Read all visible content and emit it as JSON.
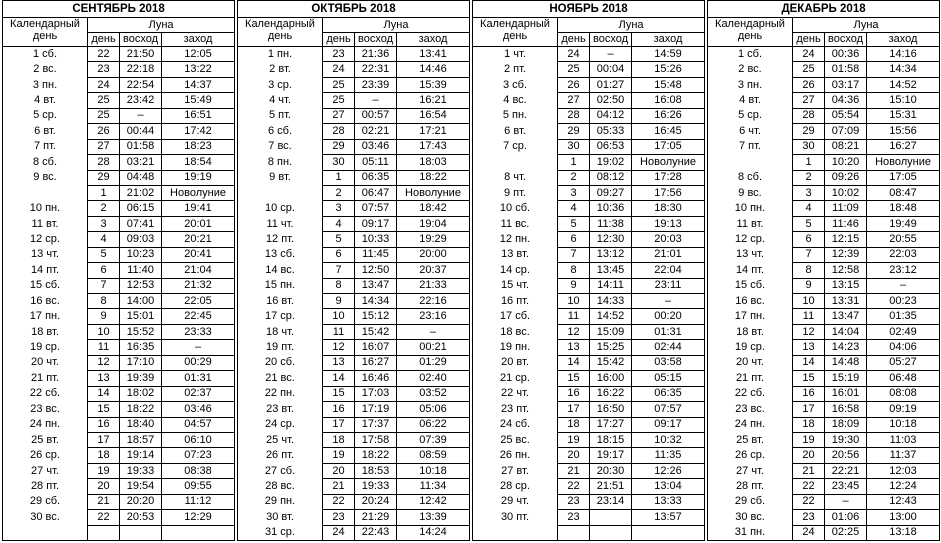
{
  "headers": {
    "calendar_day": "Календарный день",
    "moon": "Луна",
    "moon_day": "день",
    "rise": "восход",
    "set": "заход"
  },
  "months": [
    {
      "title": "СЕНТЯБРЬ 2018",
      "rows": [
        [
          "1 сб.",
          "22",
          "21:50",
          "12:05"
        ],
        [
          "2 вс.",
          "23",
          "22:18",
          "13:22"
        ],
        [
          "3 пн.",
          "24",
          "22:54",
          "14:37"
        ],
        [
          "4 вт.",
          "25",
          "23:42",
          "15:49"
        ],
        [
          "5 ср.",
          "25",
          "–",
          "16:51"
        ],
        [
          "6 вт.",
          "26",
          "00:44",
          "17:42"
        ],
        [
          "7 пт.",
          "27",
          "01:58",
          "18:23"
        ],
        [
          "8 сб.",
          "28",
          "03:21",
          "18:54"
        ],
        [
          "9 вс.",
          "29",
          "04:48",
          "19:19"
        ],
        [
          "",
          "1",
          "21:02",
          "Новолуние"
        ],
        [
          "10 пн.",
          "2",
          "06:15",
          "19:41"
        ],
        [
          "11 вт.",
          "3",
          "07:41",
          "20:01"
        ],
        [
          "12 ср.",
          "4",
          "09:03",
          "20:21"
        ],
        [
          "13 чт.",
          "5",
          "10:23",
          "20:41"
        ],
        [
          "14 пт.",
          "6",
          "11:40",
          "21:04"
        ],
        [
          "15 сб.",
          "7",
          "12:53",
          "21:32"
        ],
        [
          "16 вс.",
          "8",
          "14:00",
          "22:05"
        ],
        [
          "17 пн.",
          "9",
          "15:01",
          "22:45"
        ],
        [
          "18 вт.",
          "10",
          "15:52",
          "23:33"
        ],
        [
          "19 ср.",
          "11",
          "16:35",
          "–"
        ],
        [
          "20 чт.",
          "12",
          "17:10",
          "00:29"
        ],
        [
          "21 пт.",
          "13",
          "19:39",
          "01:31"
        ],
        [
          "22 сб.",
          "14",
          "18:02",
          "02:37"
        ],
        [
          "23 вс.",
          "15",
          "18:22",
          "03:46"
        ],
        [
          "24 пн.",
          "16",
          "18:40",
          "04:57"
        ],
        [
          "25 вт.",
          "17",
          "18:57",
          "06:10"
        ],
        [
          "26 ср.",
          "18",
          "19:14",
          "07:23"
        ],
        [
          "27 чт.",
          "19",
          "19:33",
          "08:38"
        ],
        [
          "28 пт.",
          "20",
          "19:54",
          "09:55"
        ],
        [
          "29 сб.",
          "21",
          "20:20",
          "11:12"
        ],
        [
          "30 вс.",
          "22",
          "20:53",
          "12:29"
        ],
        [
          "",
          "",
          "",
          ""
        ]
      ]
    },
    {
      "title": "ОКТЯБРЬ 2018",
      "rows": [
        [
          "1 пн.",
          "23",
          "21:36",
          "13:41"
        ],
        [
          "2 вт.",
          "24",
          "22:31",
          "14:46"
        ],
        [
          "3 ср.",
          "25",
          "23:39",
          "15:39"
        ],
        [
          "4 чт.",
          "25",
          "–",
          "16:21"
        ],
        [
          "5 пт.",
          "27",
          "00:57",
          "16:54"
        ],
        [
          "6 сб.",
          "28",
          "02:21",
          "17:21"
        ],
        [
          "7 вс.",
          "29",
          "03:46",
          "17:43"
        ],
        [
          "8 пн.",
          "30",
          "05:11",
          "18:03"
        ],
        [
          "9 вт.",
          "1",
          "06:35",
          "18:22"
        ],
        [
          "",
          "2",
          "06:47",
          "Новолуние"
        ],
        [
          "10 ср.",
          "3",
          "07:57",
          "18:42"
        ],
        [
          "11 чт.",
          "4",
          "09:17",
          "19:04"
        ],
        [
          "12 пт.",
          "5",
          "10:33",
          "19:29"
        ],
        [
          "13 сб.",
          "6",
          "11:45",
          "20:00"
        ],
        [
          "14 вс.",
          "7",
          "12:50",
          "20:37"
        ],
        [
          "15 пн.",
          "8",
          "13:47",
          "21:33"
        ],
        [
          "16 вт.",
          "9",
          "14:34",
          "22:16"
        ],
        [
          "17 ср.",
          "10",
          "15:12",
          "23:16"
        ],
        [
          "18 чт.",
          "11",
          "15:42",
          "–"
        ],
        [
          "19 пт.",
          "12",
          "16:07",
          "00:21"
        ],
        [
          "20 сб.",
          "13",
          "16:27",
          "01:29"
        ],
        [
          "21 вс.",
          "14",
          "16:46",
          "02:40"
        ],
        [
          "22 пн.",
          "15",
          "17:03",
          "03:52"
        ],
        [
          "23 вт.",
          "16",
          "17:19",
          "05:06"
        ],
        [
          "24 ср.",
          "17",
          "17:37",
          "06:22"
        ],
        [
          "25 чт.",
          "18",
          "17:58",
          "07:39"
        ],
        [
          "26 пт.",
          "19",
          "18:22",
          "08:59"
        ],
        [
          "27 сб.",
          "20",
          "18:53",
          "10:18"
        ],
        [
          "28 вс.",
          "21",
          "19:33",
          "11:34"
        ],
        [
          "29 пн.",
          "22",
          "20:24",
          "12:42"
        ],
        [
          "30 вт.",
          "23",
          "21:29",
          "13:39"
        ],
        [
          "31 ср.",
          "24",
          "22:43",
          "14:24"
        ]
      ]
    },
    {
      "title": "НОЯБРЬ 2018",
      "rows": [
        [
          "1 чт.",
          "24",
          "–",
          "14:59"
        ],
        [
          "2 пт.",
          "25",
          "00:04",
          "15:26"
        ],
        [
          "3 сб.",
          "26",
          "01:27",
          "15:48"
        ],
        [
          "4 вс.",
          "27",
          "02:50",
          "16:08"
        ],
        [
          "5 пн.",
          "28",
          "04:12",
          "16:26"
        ],
        [
          "6 вт.",
          "29",
          "05:33",
          "16:45"
        ],
        [
          "7 ср.",
          "30",
          "06:53",
          "17:05"
        ],
        [
          "",
          "1",
          "19:02",
          "Новолуние"
        ],
        [
          "8 чт.",
          "2",
          "08:12",
          "17:28"
        ],
        [
          "9 пт.",
          "3",
          "09:27",
          "17:56"
        ],
        [
          "10 сб.",
          "4",
          "10:36",
          "18:30"
        ],
        [
          "11 вс.",
          "5",
          "11:38",
          "19:13"
        ],
        [
          "12 пн.",
          "6",
          "12:30",
          "20:03"
        ],
        [
          "13 вт.",
          "7",
          "13:12",
          "21:01"
        ],
        [
          "14 ср.",
          "8",
          "13:45",
          "22:04"
        ],
        [
          "15 чт.",
          "9",
          "14:11",
          "23:11"
        ],
        [
          "16 пт.",
          "10",
          "14:33",
          "–"
        ],
        [
          "17 сб.",
          "11",
          "14:52",
          "00:20"
        ],
        [
          "18 вс.",
          "12",
          "15:09",
          "01:31"
        ],
        [
          "19 пн.",
          "13",
          "15:25",
          "02:44"
        ],
        [
          "20 вт.",
          "14",
          "15:42",
          "03:58"
        ],
        [
          "21 ср.",
          "15",
          "16:00",
          "05:15"
        ],
        [
          "22 чт.",
          "16",
          "16:22",
          "06:35"
        ],
        [
          "23 пт.",
          "17",
          "16:50",
          "07:57"
        ],
        [
          "24 сб.",
          "18",
          "17:27",
          "09:17"
        ],
        [
          "25 вс.",
          "19",
          "18:15",
          "10:32"
        ],
        [
          "26 пн.",
          "20",
          "19:17",
          "11:35"
        ],
        [
          "27 вт.",
          "21",
          "20:30",
          "12:26"
        ],
        [
          "28 ср.",
          "22",
          "21:51",
          "13:04"
        ],
        [
          "29 чт.",
          "23",
          "23:14",
          "13:33"
        ],
        [
          "30 пт.",
          "23",
          "",
          "13:57"
        ],
        [
          "",
          "",
          "",
          ""
        ]
      ]
    },
    {
      "title": "ДЕКАБРЬ 2018",
      "rows": [
        [
          "1 сб.",
          "24",
          "00:36",
          "14:16"
        ],
        [
          "2 вс.",
          "25",
          "01:58",
          "14:34"
        ],
        [
          "3 пн.",
          "26",
          "03:17",
          "14:52"
        ],
        [
          "4 вт.",
          "27",
          "04:36",
          "15:10"
        ],
        [
          "5 ср.",
          "28",
          "05:54",
          "15:31"
        ],
        [
          "6 чт.",
          "29",
          "07:09",
          "15:56"
        ],
        [
          "7 пт.",
          "30",
          "08:21",
          "16:27"
        ],
        [
          "",
          "1",
          "10:20",
          "Новолуние"
        ],
        [
          "8 сб.",
          "2",
          "09:26",
          "17:05"
        ],
        [
          "9 вс.",
          "3",
          "10:02",
          "08:47"
        ],
        [
          "10 пн.",
          "4",
          "11:09",
          "18:48"
        ],
        [
          "11 вт.",
          "5",
          "11:46",
          "19:49"
        ],
        [
          "12 ср.",
          "6",
          "12:15",
          "20:55"
        ],
        [
          "13 чт.",
          "7",
          "12:39",
          "22:03"
        ],
        [
          "14 пт.",
          "8",
          "12:58",
          "23:12"
        ],
        [
          "15 сб.",
          "9",
          "13:15",
          "–"
        ],
        [
          "16 вс.",
          "10",
          "13:31",
          "00:23"
        ],
        [
          "17 пн.",
          "11",
          "13:47",
          "01:35"
        ],
        [
          "18 вт.",
          "12",
          "14:04",
          "02:49"
        ],
        [
          "19 ср.",
          "13",
          "14:23",
          "04:06"
        ],
        [
          "20 чт.",
          "14",
          "14:48",
          "05:27"
        ],
        [
          "21 пт.",
          "15",
          "15:19",
          "06:48"
        ],
        [
          "22 сб.",
          "16",
          "16:01",
          "08:08"
        ],
        [
          "23 вс.",
          "17",
          "16:58",
          "09:19"
        ],
        [
          "24 пн.",
          "18",
          "18:09",
          "10:18"
        ],
        [
          "25 вт.",
          "19",
          "19:30",
          "11:03"
        ],
        [
          "26 ср.",
          "20",
          "20:56",
          "11:37"
        ],
        [
          "27 чт.",
          "21",
          "22:21",
          "12:03"
        ],
        [
          "28 пт.",
          "22",
          "23:45",
          "12:24"
        ],
        [
          "29 сб.",
          "22",
          "–",
          "12:43"
        ],
        [
          "30 вс.",
          "23",
          "01:06",
          "13:00"
        ],
        [
          "31 пн.",
          "24",
          "02:25",
          "13:18"
        ]
      ]
    }
  ]
}
